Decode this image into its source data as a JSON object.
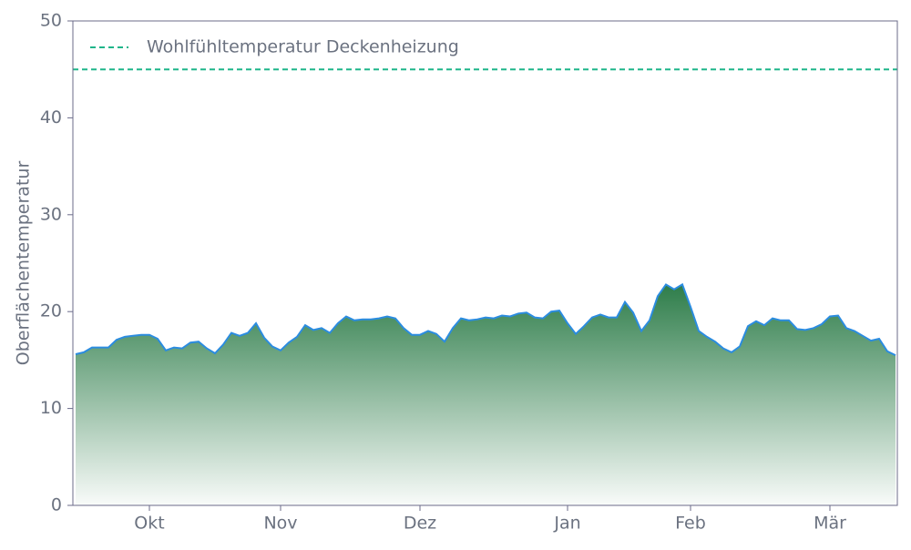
{
  "chart_data": {
    "type": "area",
    "ylabel": "Oberflächentemperatur",
    "categories": [
      null,
      null,
      null,
      null,
      null,
      null,
      null,
      null,
      null,
      "Okt",
      null,
      null,
      null,
      null,
      null,
      null,
      null,
      null,
      null,
      null,
      null,
      null,
      null,
      null,
      null,
      "Nov",
      null,
      null,
      null,
      null,
      null,
      null,
      null,
      null,
      null,
      null,
      null,
      null,
      null,
      null,
      null,
      null,
      "Dez",
      null,
      null,
      null,
      null,
      null,
      null,
      null,
      null,
      null,
      null,
      null,
      null,
      null,
      null,
      null,
      null,
      null,
      "Jan",
      null,
      null,
      null,
      null,
      null,
      null,
      null,
      null,
      null,
      null,
      null,
      null,
      null,
      null,
      "Feb",
      null,
      null,
      null,
      null,
      null,
      null,
      null,
      null,
      null,
      null,
      null,
      null,
      null,
      null,
      null,
      null,
      "Mär",
      null,
      null,
      null,
      null,
      null,
      null,
      null,
      null
    ],
    "values": [
      15.6,
      15.8,
      16.3,
      16.3,
      16.3,
      17.1,
      17.4,
      17.5,
      17.6,
      17.6,
      17.2,
      16.0,
      16.3,
      16.2,
      16.8,
      16.9,
      16.2,
      15.7,
      16.6,
      17.8,
      17.5,
      17.8,
      18.8,
      17.3,
      16.4,
      16.0,
      16.8,
      17.4,
      18.6,
      18.1,
      18.3,
      17.8,
      18.8,
      19.5,
      19.1,
      19.2,
      19.2,
      19.3,
      19.5,
      19.3,
      18.3,
      17.6,
      17.6,
      18.0,
      17.7,
      16.9,
      18.3,
      19.3,
      19.1,
      19.2,
      19.4,
      19.3,
      19.6,
      19.5,
      19.8,
      19.9,
      19.4,
      19.3,
      20.0,
      20.1,
      18.8,
      17.7,
      18.5,
      19.4,
      19.7,
      19.4,
      19.4,
      21.0,
      19.9,
      18.0,
      19.1,
      21.6,
      22.8,
      22.3,
      22.8,
      20.5,
      18.0,
      17.4,
      16.9,
      16.2,
      15.8,
      16.4,
      18.5,
      19.0,
      18.6,
      19.3,
      19.1,
      19.1,
      18.2,
      18.1,
      18.3,
      18.7,
      19.5,
      19.6,
      18.3,
      18.0,
      17.5,
      17.0,
      17.2,
      15.9,
      15.5
    ],
    "color": "#2b8ce0",
    "fill_color": "#2e7d4a",
    "ylim": [
      0,
      50
    ],
    "yticks": [
      0,
      10,
      20,
      30,
      40,
      50
    ],
    "reference_lines": [
      {
        "name": "Wohlfühltemperatur Deckenheizung",
        "value": 45,
        "color": "#1fb58a"
      }
    ],
    "legend": "upper left"
  }
}
